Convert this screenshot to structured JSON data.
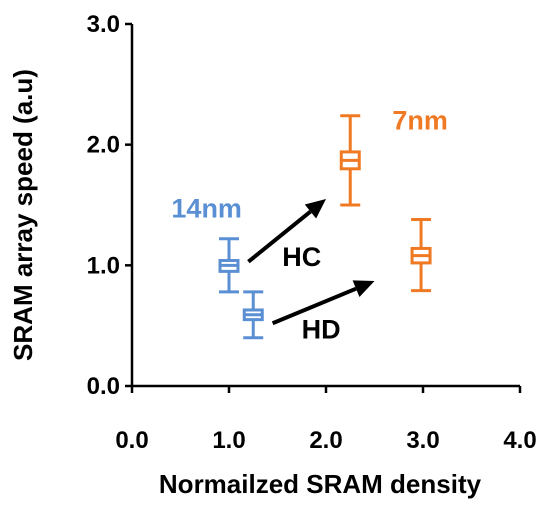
{
  "chart_data": {
    "type": "box",
    "xlabel": "Normailzed SRAM density",
    "ylabel": "SRAM array speed (a.u)",
    "xlim": [
      0,
      4
    ],
    "ylim": [
      0,
      3
    ],
    "xticks": [
      "0.0",
      "1.0",
      "2.0",
      "3.0",
      "4.0"
    ],
    "yticks": [
      "0.0",
      "1.0",
      "2.0",
      "3.0"
    ],
    "grid": false,
    "series": [
      {
        "name": "14nm",
        "color": "#5b8fd3",
        "boxes": [
          {
            "x": 1.0,
            "min": 0.78,
            "q1": 0.95,
            "median": 1.0,
            "q3": 1.04,
            "max": 1.22
          },
          {
            "x": 1.25,
            "min": 0.4,
            "q1": 0.55,
            "median": 0.59,
            "q3": 0.63,
            "max": 0.78
          }
        ]
      },
      {
        "name": "7nm",
        "color": "#f07a24",
        "boxes": [
          {
            "x": 2.25,
            "min": 1.5,
            "q1": 1.8,
            "median": 1.87,
            "q3": 1.94,
            "max": 2.24
          },
          {
            "x": 2.98,
            "min": 0.79,
            "q1": 1.02,
            "median": 1.08,
            "q3": 1.14,
            "max": 1.38
          }
        ]
      }
    ],
    "annotations": [
      {
        "text": "HC",
        "x": 1.75,
        "y": 1.07
      },
      {
        "text": "HD",
        "x": 1.95,
        "y": 0.47
      }
    ],
    "arrows": [
      {
        "from": [
          1.2,
          1.03
        ],
        "to": [
          2.0,
          1.55
        ]
      },
      {
        "from": [
          1.45,
          0.52
        ],
        "to": [
          2.5,
          0.87
        ]
      }
    ],
    "series_labels": [
      {
        "text": "14nm",
        "x": 0.77,
        "y": 1.47
      },
      {
        "text": "7nm",
        "x": 2.97,
        "y": 2.2
      }
    ]
  }
}
